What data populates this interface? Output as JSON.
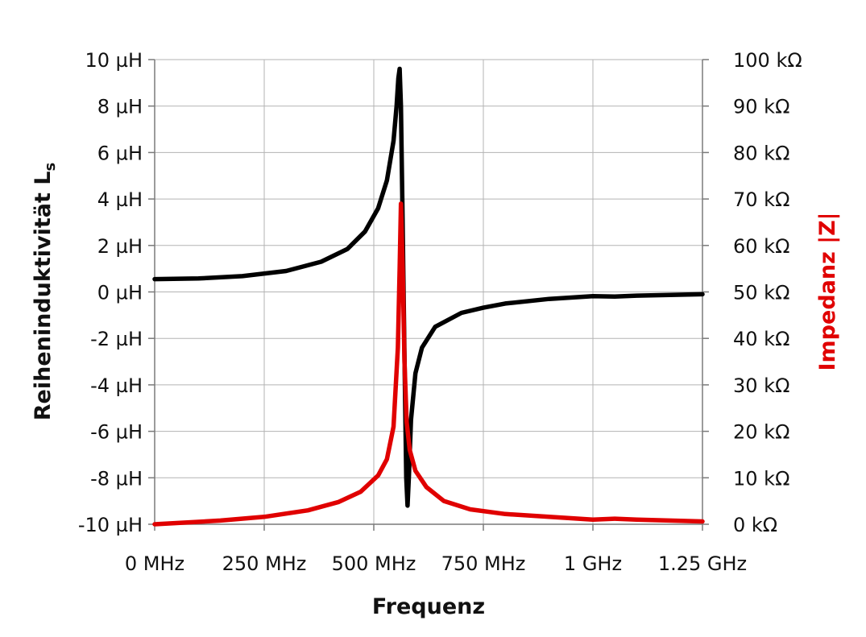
{
  "chart_data": {
    "type": "line",
    "xlabel": "Frequenz",
    "ylabel_left": "Reiheninduktivität L",
    "ylabel_left_subscript": "s",
    "ylabel_right": "Impedanz |Z|",
    "xlim": [
      0,
      1250
    ],
    "ylim_left": [
      -10,
      10
    ],
    "ylim_right": [
      0,
      100
    ],
    "grid": true,
    "colors": {
      "inductance": "#000000",
      "impedance": "#e00000"
    },
    "x_tick_labels": [
      {
        "value": 0,
        "label": "0 MHz"
      },
      {
        "value": 250,
        "label": "250 MHz"
      },
      {
        "value": 500,
        "label": "500 MHz"
      },
      {
        "value": 750,
        "label": "750 MHz"
      },
      {
        "value": 1000,
        "label": "1 GHz"
      },
      {
        "value": 1250,
        "label": "1.25 GHz"
      }
    ],
    "y_left_tick_labels": [
      {
        "value": 10,
        "label": "10 µH"
      },
      {
        "value": 8,
        "label": "8 µH"
      },
      {
        "value": 6,
        "label": "6 µH"
      },
      {
        "value": 4,
        "label": "4 µH"
      },
      {
        "value": 2,
        "label": "2 µH"
      },
      {
        "value": 0,
        "label": "0 µH"
      },
      {
        "value": -2,
        "label": "-2 µH"
      },
      {
        "value": -4,
        "label": "-4 µH"
      },
      {
        "value": -6,
        "label": "-6 µH"
      },
      {
        "value": -8,
        "label": "-8 µH"
      },
      {
        "value": -10,
        "label": "-10 µH"
      }
    ],
    "y_right_tick_labels": [
      {
        "value": 100,
        "label": "100 kΩ"
      },
      {
        "value": 90,
        "label": "90 kΩ"
      },
      {
        "value": 80,
        "label": "80 kΩ"
      },
      {
        "value": 70,
        "label": "70 kΩ"
      },
      {
        "value": 60,
        "label": "60 kΩ"
      },
      {
        "value": 50,
        "label": "50 kΩ"
      },
      {
        "value": 40,
        "label": "40 kΩ"
      },
      {
        "value": 30,
        "label": "30 kΩ"
      },
      {
        "value": 20,
        "label": "20 kΩ"
      },
      {
        "value": 10,
        "label": "10 kΩ"
      },
      {
        "value": 0,
        "label": "0 kΩ"
      }
    ],
    "series": [
      {
        "axis": "left",
        "unit": "µH",
        "points": [
          [
            0,
            0.55
          ],
          [
            100,
            0.58
          ],
          [
            200,
            0.68
          ],
          [
            300,
            0.9
          ],
          [
            380,
            1.3
          ],
          [
            440,
            1.85
          ],
          [
            480,
            2.6
          ],
          [
            510,
            3.6
          ],
          [
            530,
            4.8
          ],
          [
            545,
            6.5
          ],
          [
            552,
            8.0
          ],
          [
            556,
            9.2
          ],
          [
            559,
            9.6
          ],
          [
            562,
            8.0
          ],
          [
            565,
            4.0
          ],
          [
            568,
            0.0
          ],
          [
            571,
            -4.0
          ],
          [
            574,
            -8.0
          ],
          [
            577,
            -9.2
          ],
          [
            580,
            -8.0
          ],
          [
            585,
            -5.5
          ],
          [
            595,
            -3.5
          ],
          [
            610,
            -2.4
          ],
          [
            640,
            -1.5
          ],
          [
            700,
            -0.9
          ],
          [
            750,
            -0.68
          ],
          [
            800,
            -0.5
          ],
          [
            900,
            -0.3
          ],
          [
            1000,
            -0.18
          ],
          [
            1050,
            -0.2
          ],
          [
            1100,
            -0.16
          ],
          [
            1250,
            -0.1
          ]
        ]
      },
      {
        "axis": "right",
        "unit": "kΩ",
        "points": [
          [
            0,
            0.0
          ],
          [
            150,
            0.8
          ],
          [
            250,
            1.6
          ],
          [
            350,
            3.0
          ],
          [
            420,
            4.8
          ],
          [
            470,
            7.0
          ],
          [
            510,
            10.5
          ],
          [
            530,
            14.0
          ],
          [
            545,
            21.0
          ],
          [
            555,
            38.0
          ],
          [
            559,
            55.0
          ],
          [
            562,
            69.0
          ],
          [
            566,
            55.0
          ],
          [
            570,
            35.0
          ],
          [
            575,
            22.0
          ],
          [
            582,
            16.0
          ],
          [
            595,
            11.5
          ],
          [
            620,
            8.0
          ],
          [
            660,
            5.0
          ],
          [
            720,
            3.2
          ],
          [
            800,
            2.2
          ],
          [
            900,
            1.6
          ],
          [
            1000,
            1.0
          ],
          [
            1050,
            1.2
          ],
          [
            1100,
            1.0
          ],
          [
            1250,
            0.6
          ]
        ]
      }
    ]
  }
}
